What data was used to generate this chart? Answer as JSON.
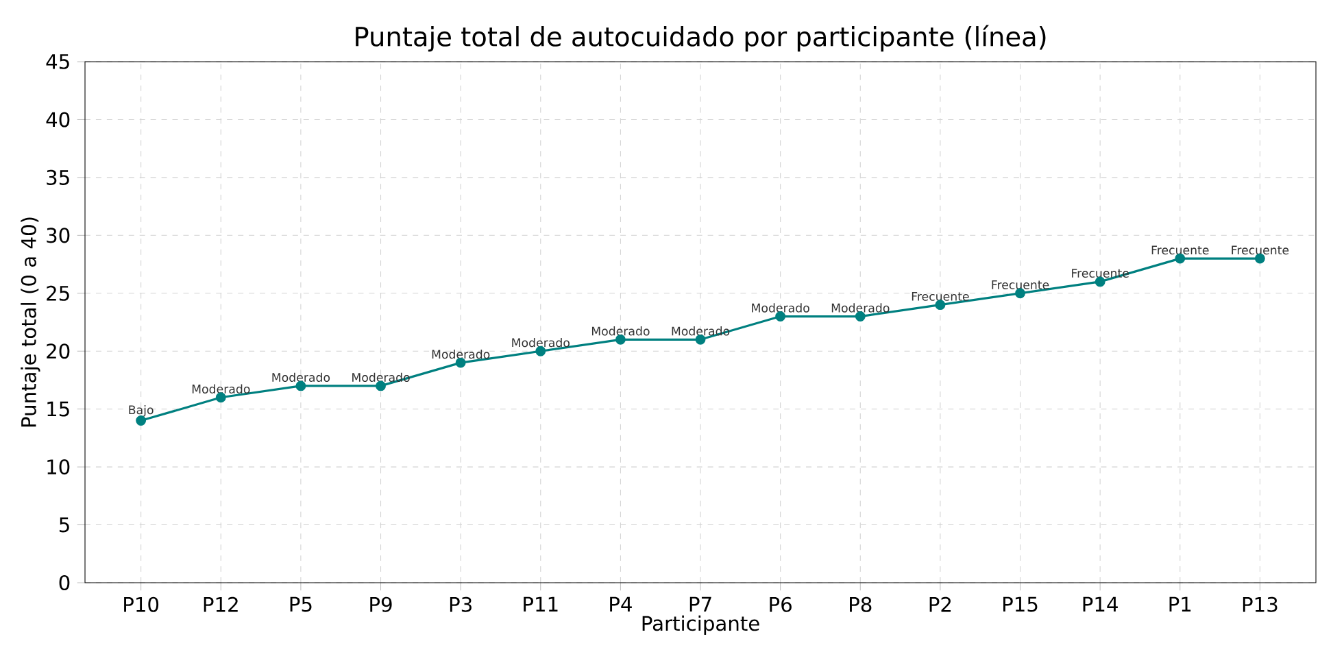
{
  "chart_data": {
    "type": "line",
    "title": "Puntaje total de autocuidado por participante (línea)",
    "xlabel": "Participante",
    "ylabel": "Puntaje total (0 a 40)",
    "categories": [
      "P10",
      "P12",
      "P5",
      "P9",
      "P3",
      "P11",
      "P4",
      "P7",
      "P6",
      "P8",
      "P2",
      "P15",
      "P14",
      "P1",
      "P13"
    ],
    "values": [
      14,
      16,
      17,
      17,
      19,
      20,
      21,
      21,
      23,
      23,
      24,
      25,
      26,
      28,
      28
    ],
    "value_labels": [
      "Bajo",
      "Moderado",
      "Moderado",
      "Moderado",
      "Moderado",
      "Moderado",
      "Moderado",
      "Moderado",
      "Moderado",
      "Moderado",
      "Frecuente",
      "Frecuente",
      "Frecuente",
      "Frecuente",
      "Frecuente"
    ],
    "color": "#008080",
    "marker": "circle",
    "line_style": "solid",
    "grid": true,
    "ylim": [
      0,
      45
    ],
    "yticks": [
      0,
      5,
      10,
      15,
      20,
      25,
      30,
      35,
      40,
      45
    ]
  }
}
